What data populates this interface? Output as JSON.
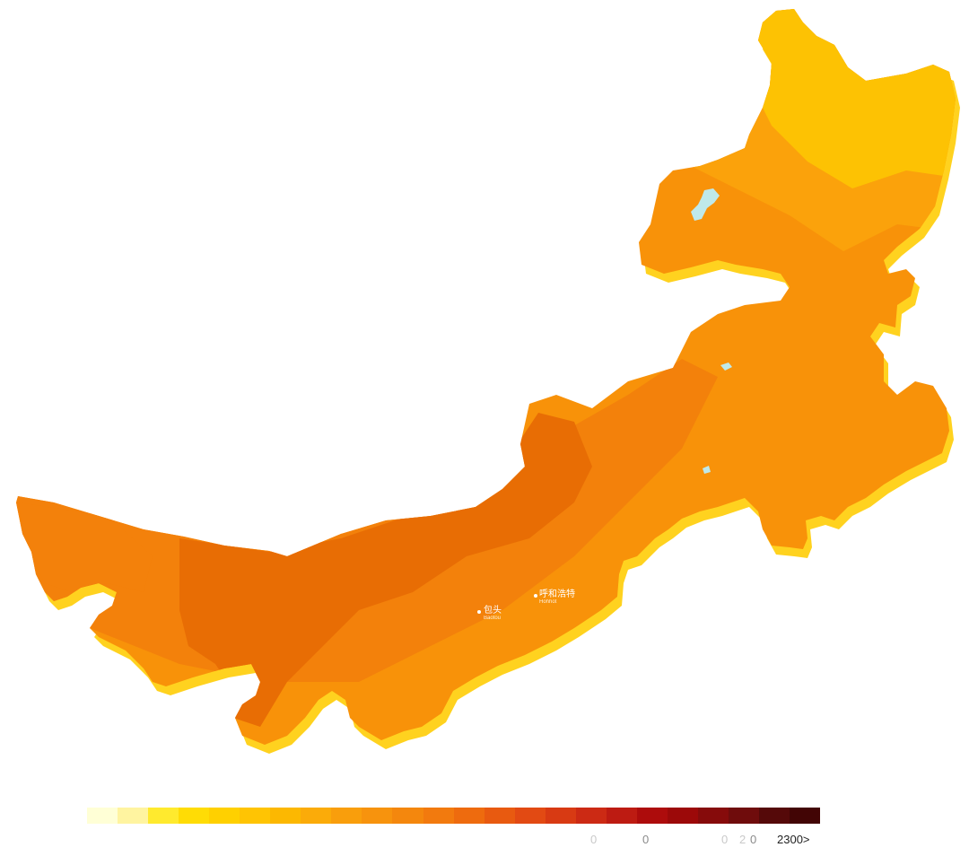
{
  "map": {
    "region_colors": {
      "edge_shadow": "#ffd21f",
      "far_north": "#fdc203",
      "northeast": "#fba20b",
      "central": "#f89209",
      "central_west": "#f3810b",
      "west_core": "#e86d04",
      "lake": "#bfe9ea"
    },
    "cities": [
      {
        "name": "包头",
        "name_en": "Baotou"
      },
      {
        "name": "呼和浩特",
        "name_en": "Hohhot"
      }
    ]
  },
  "legend": {
    "colors": [
      "#ffffd6",
      "#fff4a0",
      "#ffea2e",
      "#ffdc05",
      "#ffd000",
      "#ffc403",
      "#fcb801",
      "#fbab09",
      "#f99e0c",
      "#f7930d",
      "#f4870d",
      "#f27a0e",
      "#ee6b0e",
      "#e85a10",
      "#e24a13",
      "#d83a13",
      "#cc2a14",
      "#bd1b12",
      "#ad0c0c",
      "#9c0909",
      "#860b0b",
      "#6f0c0c",
      "#550909",
      "#420505"
    ],
    "labels": [
      {
        "text": "0",
        "tone": "faint"
      },
      {
        "text": "0",
        "tone": "mid"
      },
      {
        "text": "0",
        "tone": "faint"
      },
      {
        "text": "2",
        "tone": "faint"
      },
      {
        "text": "0",
        "tone": "mid"
      },
      {
        "text": "2300>",
        "tone": "dark"
      }
    ]
  }
}
